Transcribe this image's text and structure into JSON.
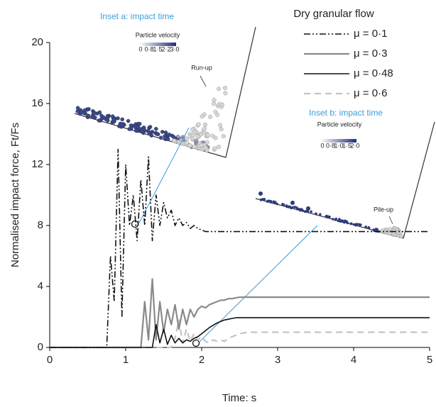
{
  "chart_data": {
    "type": "line",
    "xlabel": "Time: s",
    "ylabel": "Normalised impact force, Ft/Fs",
    "xlim": [
      0,
      5
    ],
    "ylim": [
      0,
      20
    ],
    "xticks": [
      0,
      1,
      2,
      3,
      4,
      5
    ],
    "yticks": [
      0,
      4,
      8,
      12,
      16,
      20
    ],
    "legend_title": "Dry granular flow",
    "legend_position": "upper right",
    "x": [
      0,
      0.5,
      0.7,
      0.75,
      0.8,
      0.85,
      0.9,
      0.95,
      1,
      1.05,
      1.1,
      1.15,
      1.2,
      1.25,
      1.3,
      1.35,
      1.4,
      1.45,
      1.5,
      1.55,
      1.6,
      1.65,
      1.7,
      1.75,
      1.8,
      1.85,
      1.9,
      1.95,
      2,
      2.05,
      2.1,
      2.15,
      2.2,
      2.25,
      2.3,
      2.35,
      2.4,
      2.45,
      2.5,
      2.55,
      2.6,
      3,
      4,
      5
    ],
    "series": [
      {
        "name": "μ = 0·1",
        "color": "#111111",
        "dash": "9,3,2,3,2,3",
        "linewidth": 1.6,
        "values": [
          0,
          0,
          0,
          0,
          6,
          3,
          13,
          2,
          12,
          8,
          10,
          7,
          11,
          8,
          12.5,
          7,
          10,
          8,
          9.5,
          8.5,
          9,
          8,
          8.5,
          8,
          8.2,
          7.8,
          8,
          7.8,
          7.7,
          7.6,
          7.6,
          7.6,
          7.6,
          7.6,
          7.6,
          7.6,
          7.6,
          7.6,
          7.6,
          7.6,
          7.6,
          7.6,
          7.6,
          7.6
        ]
      },
      {
        "name": "μ = 0·3",
        "color": "#8a8a8a",
        "dash": "none",
        "linewidth": 2.2,
        "values": [
          0,
          0,
          0,
          0,
          0,
          0,
          0,
          0,
          0,
          0,
          0,
          0,
          0,
          3,
          0.5,
          4.5,
          0.5,
          3,
          1,
          2.5,
          1.5,
          2.8,
          1.2,
          2.5,
          1.5,
          2.5,
          2,
          2.5,
          2.7,
          2.6,
          2.8,
          2.9,
          3.0,
          3.1,
          3.1,
          3.2,
          3.2,
          3.25,
          3.3,
          3.3,
          3.3,
          3.3,
          3.3,
          3.3
        ]
      },
      {
        "name": "μ = 0·48",
        "color": "#111111",
        "dash": "none",
        "linewidth": 1.6,
        "values": [
          0,
          0,
          0,
          0,
          0,
          0,
          0,
          0,
          0,
          0,
          0,
          0,
          0,
          0,
          0,
          0,
          1.5,
          0.3,
          1.2,
          0.2,
          0.8,
          0.3,
          0.6,
          0.3,
          0.5,
          0.4,
          0.6,
          0.7,
          0.9,
          1.1,
          1.3,
          1.45,
          1.6,
          1.7,
          1.8,
          1.85,
          1.9,
          1.95,
          1.95,
          1.95,
          1.95,
          1.95,
          1.95,
          1.95
        ]
      },
      {
        "name": "μ = 0·6",
        "color": "#c4c4c4",
        "dash": "9,6",
        "linewidth": 2.2,
        "values": [
          0,
          0,
          0,
          0,
          0,
          0,
          0,
          0,
          0,
          0,
          0,
          0,
          0,
          0,
          0,
          0,
          0,
          0,
          0,
          0,
          0,
          0.6,
          1.8,
          0.3,
          1.2,
          0.4,
          0.9,
          0.5,
          0.7,
          0.4,
          0.3,
          0.5,
          0.4,
          0.5,
          0.4,
          0.6,
          0.7,
          0.8,
          0.9,
          0.95,
          1.0,
          1.0,
          1.0,
          1.0
        ]
      }
    ],
    "insets": [
      {
        "title": "Inset a: impact time",
        "scale_title": "Particle velocity",
        "scale_labels": [
          "0",
          "0·8",
          "1·5",
          "2·2",
          "3·0"
        ],
        "annotation": "Run-up"
      },
      {
        "title": "Inset b: impact time",
        "scale_title": "Particle velocity",
        "scale_labels": [
          "0",
          "0·8",
          "1·0",
          "1·5",
          "2·0"
        ],
        "annotation": "Pile-up"
      }
    ]
  }
}
